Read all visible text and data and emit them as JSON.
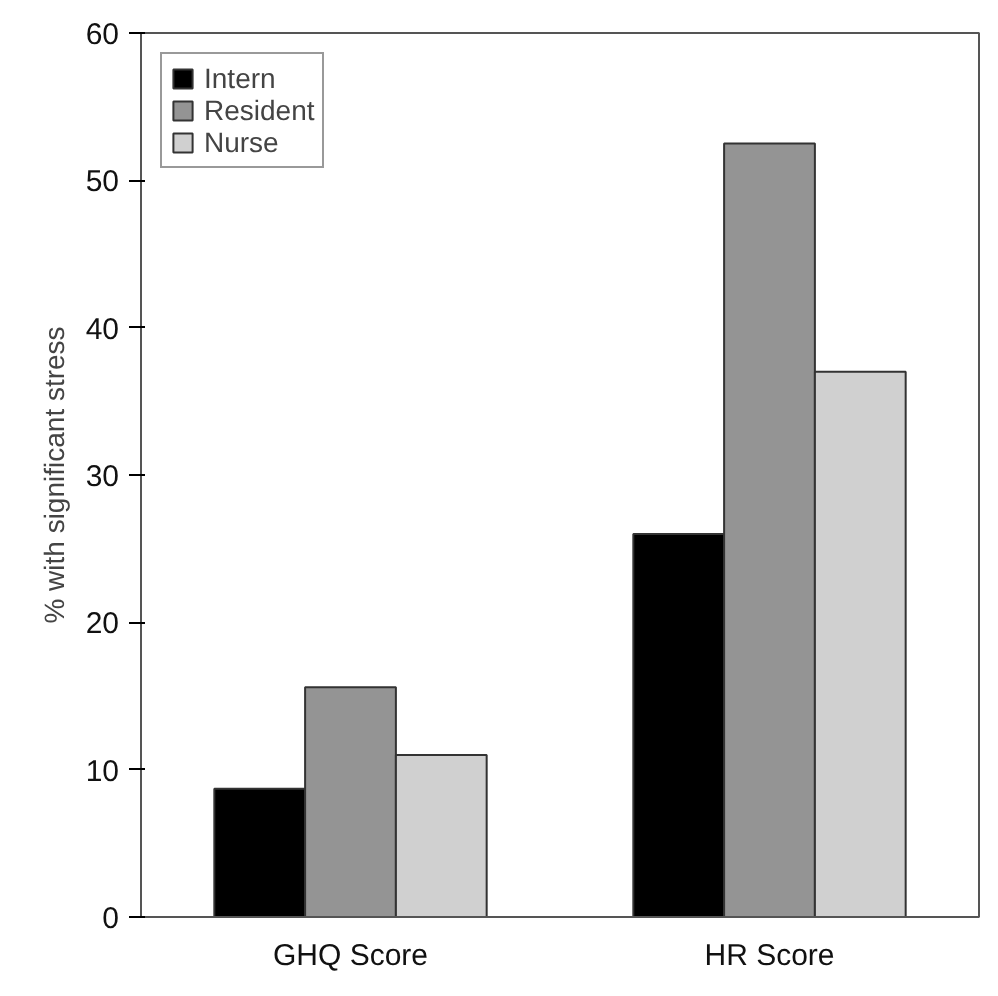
{
  "chart_data": {
    "type": "bar",
    "ylabel": "% with significant stress",
    "categories": [
      "GHQ Score",
      "HR Score"
    ],
    "series": [
      {
        "name": "Intern",
        "color": "#000000",
        "values": [
          8.7,
          26.0
        ]
      },
      {
        "name": "Resident",
        "color": "#949494",
        "values": [
          15.6,
          52.5
        ]
      },
      {
        "name": "Nurse",
        "color": "#d0d0d0",
        "values": [
          11.0,
          37.0
        ]
      }
    ],
    "ylim": [
      0,
      60
    ],
    "yticks": [
      0,
      10,
      20,
      30,
      40,
      50,
      60
    ],
    "grid": false,
    "legend": "top left"
  }
}
